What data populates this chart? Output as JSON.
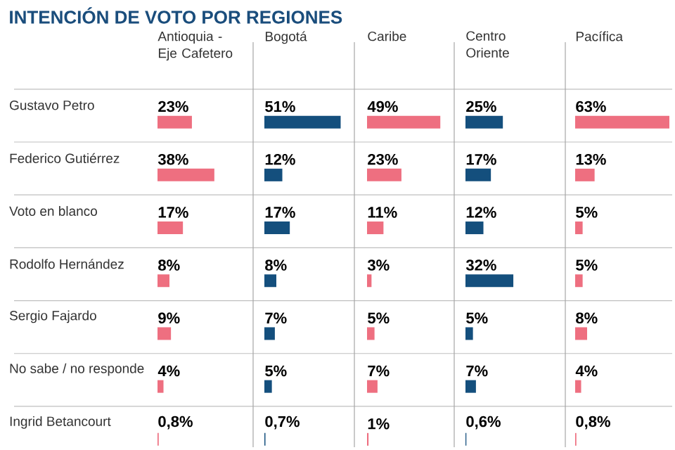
{
  "chart_data": [
    {
      "type": "other",
      "title": "INTENCIÓN DE VOTO POR REGIONES"
    },
    {
      "type": "bar",
      "orientation": "horizontal",
      "title": "Antioquia - Eje Cafetero",
      "tick_labels": "y",
      "color": "#ee6f80",
      "categories": [
        "Gustavo Petro",
        "Federico Gutiérrez",
        "Voto en blanco",
        "Rodolfo Hernández",
        "Sergio Fajardo",
        "No sabe / no responde",
        "Ingrid Betancourt"
      ],
      "values": [
        23,
        38,
        17,
        8,
        9,
        4,
        0.8
      ],
      "value_labels": [
        "23%",
        "38%",
        "17%",
        "8%",
        "9%",
        "4%",
        "0,8%"
      ]
    },
    {
      "type": "bar",
      "orientation": "horizontal",
      "title": "Bogotá",
      "tick_labels": false,
      "color": "#144f7d",
      "categories": [
        null,
        null,
        null,
        null,
        null,
        null,
        null
      ],
      "values": [
        51,
        12,
        17,
        8,
        7,
        5,
        0.7
      ],
      "value_labels": [
        "51%",
        "12%",
        "17%",
        "8%",
        "7%",
        "5%",
        "0,7%"
      ]
    },
    {
      "type": "bar",
      "orientation": "horizontal",
      "title": "Caribe",
      "tick_labels": false,
      "color": "#ee6f80",
      "categories": [
        null,
        null,
        null,
        null,
        null,
        null,
        null
      ],
      "values": [
        49,
        23,
        11,
        3,
        5,
        7,
        1
      ],
      "value_labels": [
        "49%",
        "23%",
        "11%",
        "3%",
        "5%",
        "7%",
        "1%"
      ]
    },
    {
      "type": "bar",
      "orientation": "horizontal",
      "title": "Centro Oriente",
      "tick_labels": false,
      "color": "#144f7d",
      "categories": [
        null,
        null,
        null,
        null,
        null,
        null,
        null
      ],
      "values": [
        25,
        17,
        12,
        32,
        5,
        7,
        0.6
      ],
      "value_labels": [
        "25%",
        "17%",
        "12%",
        "32%",
        "5%",
        "7%",
        "0,6%"
      ]
    },
    {
      "type": "bar",
      "orientation": "horizontal",
      "title": "Pacífica",
      "tick_labels": false,
      "color": "#ee6f80",
      "categories": [
        null,
        null,
        null,
        null,
        null,
        null,
        null
      ],
      "values": [
        63,
        13,
        5,
        5,
        8,
        4,
        0.8
      ],
      "value_labels": [
        "63%",
        "13%",
        "5%",
        "5%",
        "8%",
        "4%",
        "0,8%"
      ]
    }
  ]
}
